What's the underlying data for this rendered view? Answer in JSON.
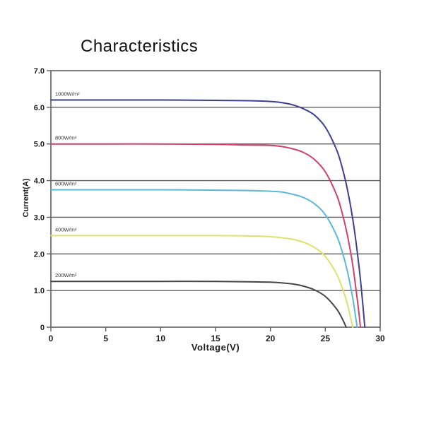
{
  "chart_data": {
    "type": "line",
    "title": "Characteristics",
    "xlabel": "Voltage(V)",
    "ylabel": "Current(A)",
    "xlim": [
      0,
      30
    ],
    "ylim": [
      0,
      7
    ],
    "x_ticks": [
      0,
      5,
      10,
      15,
      20,
      25,
      30
    ],
    "x_tick_labels": [
      "0",
      "5",
      "10",
      "15",
      "20",
      "25",
      "30"
    ],
    "y_ticks": [
      0,
      1,
      2,
      3,
      4,
      5,
      6,
      7
    ],
    "y_tick_labels": [
      "0",
      "1.0",
      "2.0",
      "3.0",
      "4.0",
      "5.0",
      "6.0",
      "7.0"
    ],
    "grid": "horizontal-only",
    "legend_position": "inline-labels-above-curves-left",
    "series": [
      {
        "name": "1000W/m²",
        "color": "#3e3e96",
        "isc": 6.2,
        "voc": 28.6,
        "points": [
          [
            0,
            6.2
          ],
          [
            5,
            6.2
          ],
          [
            10,
            6.2
          ],
          [
            15,
            6.19
          ],
          [
            18,
            6.18
          ],
          [
            20,
            6.16
          ],
          [
            21,
            6.13
          ],
          [
            22,
            6.07
          ],
          [
            23,
            5.96
          ],
          [
            24,
            5.79
          ],
          [
            25,
            5.46
          ],
          [
            26,
            4.86
          ],
          [
            26.5,
            4.4
          ],
          [
            27,
            3.78
          ],
          [
            27.5,
            2.95
          ],
          [
            28,
            1.84
          ],
          [
            28.3,
            1.0
          ],
          [
            28.6,
            0
          ]
        ]
      },
      {
        "name": "800W/m²",
        "color": "#d04068",
        "isc": 5.0,
        "voc": 28.2,
        "points": [
          [
            0,
            5.0
          ],
          [
            5,
            5.0
          ],
          [
            10,
            5.0
          ],
          [
            15,
            4.99
          ],
          [
            18,
            4.97
          ],
          [
            20,
            4.96
          ],
          [
            21,
            4.93
          ],
          [
            22,
            4.87
          ],
          [
            23,
            4.77
          ],
          [
            24,
            4.58
          ],
          [
            25,
            4.24
          ],
          [
            26,
            3.63
          ],
          [
            26.5,
            3.16
          ],
          [
            27,
            2.53
          ],
          [
            27.5,
            1.69
          ],
          [
            28,
            0.55
          ],
          [
            28.2,
            0
          ]
        ]
      },
      {
        "name": "600W/m²",
        "color": "#5bb8d9",
        "isc": 3.75,
        "voc": 27.9,
        "points": [
          [
            0,
            3.75
          ],
          [
            5,
            3.75
          ],
          [
            10,
            3.75
          ],
          [
            15,
            3.74
          ],
          [
            18,
            3.73
          ],
          [
            20,
            3.71
          ],
          [
            21,
            3.69
          ],
          [
            22,
            3.63
          ],
          [
            23,
            3.54
          ],
          [
            24,
            3.37
          ],
          [
            25,
            3.07
          ],
          [
            26,
            2.52
          ],
          [
            26.5,
            2.1
          ],
          [
            27,
            1.54
          ],
          [
            27.5,
            0.79
          ],
          [
            27.9,
            0
          ]
        ]
      },
      {
        "name": "400W/m²",
        "color": "#dde26a",
        "isc": 2.5,
        "voc": 27.5,
        "points": [
          [
            0,
            2.5
          ],
          [
            5,
            2.5
          ],
          [
            10,
            2.5
          ],
          [
            15,
            2.5
          ],
          [
            18,
            2.49
          ],
          [
            20,
            2.47
          ],
          [
            21,
            2.44
          ],
          [
            22,
            2.4
          ],
          [
            23,
            2.32
          ],
          [
            24,
            2.18
          ],
          [
            25,
            1.93
          ],
          [
            26,
            1.47
          ],
          [
            26.5,
            1.11
          ],
          [
            27,
            0.64
          ],
          [
            27.5,
            0
          ]
        ]
      },
      {
        "name": "200W/m²",
        "color": "#464646",
        "isc": 1.25,
        "voc": 26.9,
        "points": [
          [
            0,
            1.25
          ],
          [
            5,
            1.25
          ],
          [
            10,
            1.25
          ],
          [
            15,
            1.25
          ],
          [
            18,
            1.24
          ],
          [
            20,
            1.23
          ],
          [
            21,
            1.21
          ],
          [
            22,
            1.18
          ],
          [
            23,
            1.12
          ],
          [
            24,
            1.02
          ],
          [
            25,
            0.84
          ],
          [
            26,
            0.51
          ],
          [
            26.5,
            0.26
          ],
          [
            26.9,
            0
          ]
        ]
      }
    ]
  },
  "colors": {
    "background": "#ffffff",
    "grid": "#5e5e5e",
    "axis": "#5e5e5e",
    "tick_text": "#1d1d1d",
    "curve_label_text": "#333333"
  }
}
